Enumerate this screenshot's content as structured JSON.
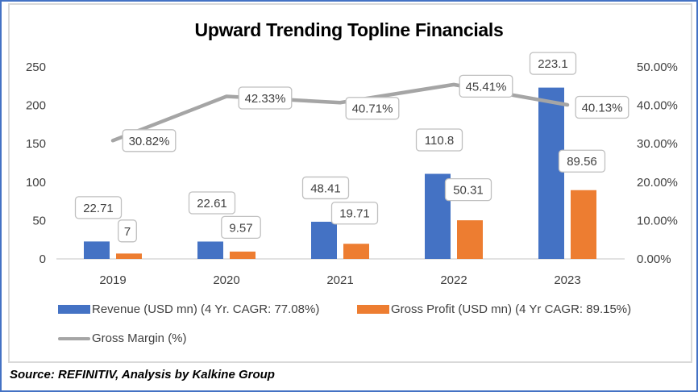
{
  "chart_data": {
    "type": "bar",
    "title": "Upward Trending Topline Financials",
    "categories": [
      "2019",
      "2020",
      "2021",
      "2022",
      "2023"
    ],
    "series": [
      {
        "name": "Revenue (USD mn) (4 Yr. CAGR: 77.08%)",
        "type": "bar",
        "axis": "left",
        "color": "#4472C4",
        "values": [
          22.71,
          22.61,
          48.41,
          110.8,
          223.1
        ],
        "labels": [
          "22.71",
          "22.61",
          "48.41",
          "110.8",
          "223.1"
        ]
      },
      {
        "name": "Gross Profit (USD mn) (4 Yr CAGR: 89.15%)",
        "type": "bar",
        "axis": "left",
        "color": "#ED7D31",
        "values": [
          7,
          9.57,
          19.71,
          50.31,
          89.56
        ],
        "labels": [
          "7",
          "9.57",
          "19.71",
          "50.31",
          "89.56"
        ]
      },
      {
        "name": "Gross Margin (%)",
        "type": "line",
        "axis": "right",
        "color": "#A5A5A5",
        "values": [
          30.82,
          42.33,
          40.71,
          45.41,
          40.13
        ],
        "labels": [
          "30.82%",
          "42.33%",
          "40.71%",
          "45.41%",
          "40.13%"
        ]
      }
    ],
    "y_left": {
      "min": 0,
      "max": 250,
      "ticks": [
        "0",
        "50",
        "100",
        "150",
        "200",
        "250"
      ]
    },
    "y_right": {
      "min": 0,
      "max": 50,
      "ticks": [
        "0.00%",
        "10.00%",
        "20.00%",
        "30.00%",
        "40.00%",
        "50.00%"
      ]
    },
    "xlabel": "",
    "ylabel": "",
    "grid": false,
    "legend_position": "bottom"
  },
  "source": "Source: REFINITIV, Analysis by Kalkine Group"
}
